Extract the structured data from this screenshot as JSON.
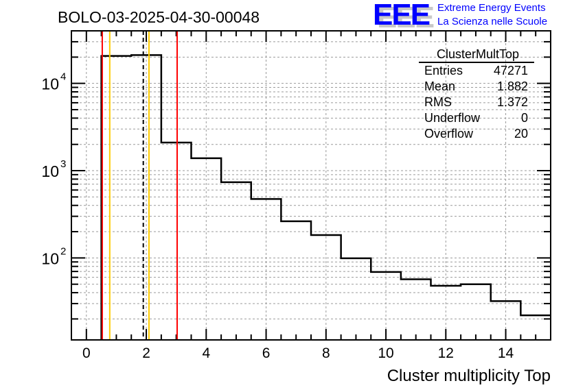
{
  "title": "BOLO-03-2025-04-30-00048",
  "logo": {
    "letters": "EEE",
    "line1": "Extreme Energy Events",
    "line2": "La Scienza nelle Scuole"
  },
  "stats": {
    "name": "ClusterMultTop",
    "rows": [
      {
        "label": "Entries",
        "value": "47271"
      },
      {
        "label": "Mean",
        "value": "1.882"
      },
      {
        "label": "RMS",
        "value": "1.372"
      },
      {
        "label": "Underflow",
        "value": "0"
      },
      {
        "label": "Overflow",
        "value": "20"
      }
    ]
  },
  "chart_data": {
    "type": "bar",
    "style": "step-histogram",
    "title": "BOLO-03-2025-04-30-00048",
    "xlabel": "Cluster multiplicity Top",
    "ylabel": "",
    "yscale": "log",
    "xlim": [
      -0.5,
      15.5
    ],
    "ylim": [
      11.5,
      40000
    ],
    "grid": true,
    "bin_edges": [
      -0.5,
      0.5,
      1.5,
      2.5,
      3.5,
      4.5,
      5.5,
      6.5,
      7.5,
      8.5,
      9.5,
      10.5,
      11.5,
      12.5,
      13.5,
      14.5,
      15.5
    ],
    "values": [
      0,
      20650,
      21100,
      2100,
      1390,
      738,
      473,
      263,
      183,
      99,
      69,
      57,
      48,
      50,
      32,
      22
    ],
    "xticks": [
      "0",
      "2",
      "4",
      "6",
      "8",
      "10",
      "12",
      "14"
    ],
    "yticks": [
      {
        "value": 100,
        "label": "10",
        "exp": "2"
      },
      {
        "value": 1000,
        "label": "10",
        "exp": "3"
      },
      {
        "value": 10000,
        "label": "10",
        "exp": "4"
      }
    ],
    "vlines": [
      {
        "x": 0.53,
        "color": "#ff0000",
        "style": "solid"
      },
      {
        "x": 0.78,
        "color": "#ffcc00",
        "style": "solid"
      },
      {
        "x": 1.9,
        "color": "#000000",
        "style": "dashed"
      },
      {
        "x": 2.09,
        "color": "#ffcc00",
        "style": "solid"
      },
      {
        "x": 3.03,
        "color": "#ff0000",
        "style": "solid"
      }
    ]
  }
}
